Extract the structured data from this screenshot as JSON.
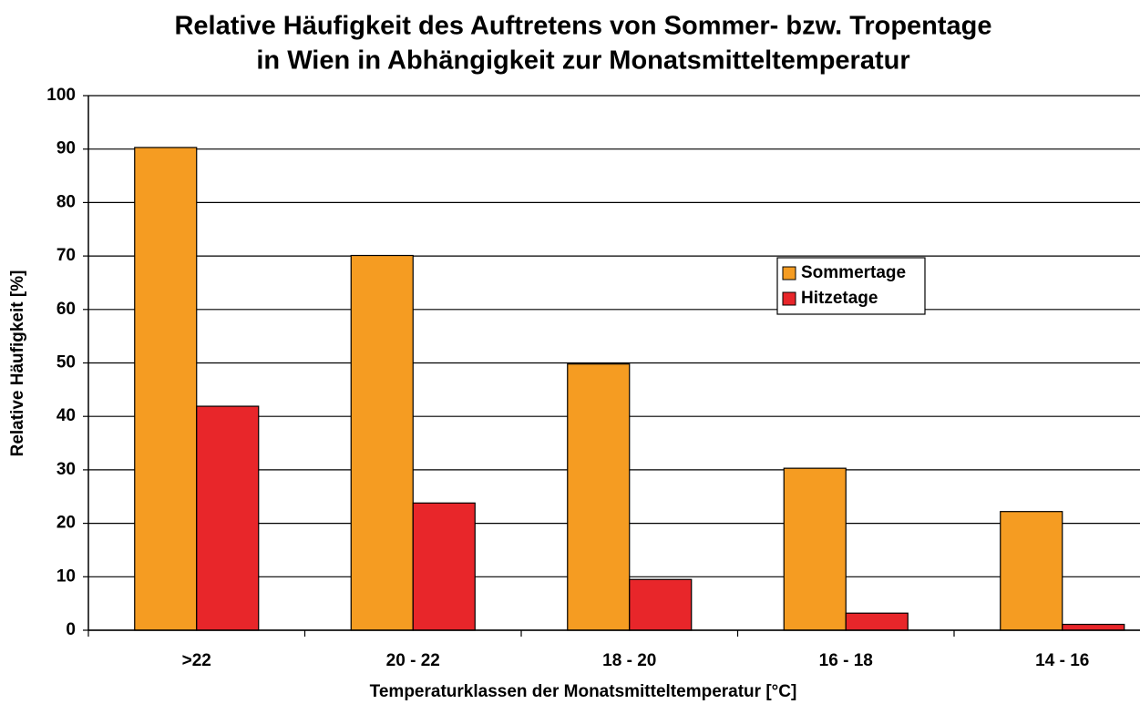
{
  "chart_data": {
    "type": "bar",
    "title": [
      "Relative Häufigkeit des Auftretens von Sommer- bzw. Tropentage",
      "in Wien in Abhängigkeit zur Monatsmitteltemperatur"
    ],
    "x_label": "Temperaturklassen der Monatsmitteltemperatur [°C]",
    "y_label": "Relative Häufigkeit [%]",
    "categories": [
      ">22",
      "20 - 22",
      "18 - 20",
      "16 - 18",
      "14 - 16"
    ],
    "series": [
      {
        "name": "Sommertage",
        "color": "#f59c22",
        "values": [
          90.3,
          70.1,
          49.8,
          30.3,
          22.2
        ]
      },
      {
        "name": "Hitzetage",
        "color": "#e8262a",
        "values": [
          41.9,
          23.8,
          9.5,
          3.2,
          1.1
        ]
      }
    ],
    "ylim": [
      0,
      100
    ],
    "yticks": [
      0,
      10,
      20,
      30,
      40,
      50,
      60,
      70,
      80,
      90,
      100
    ],
    "grid": true,
    "legend": "right"
  }
}
